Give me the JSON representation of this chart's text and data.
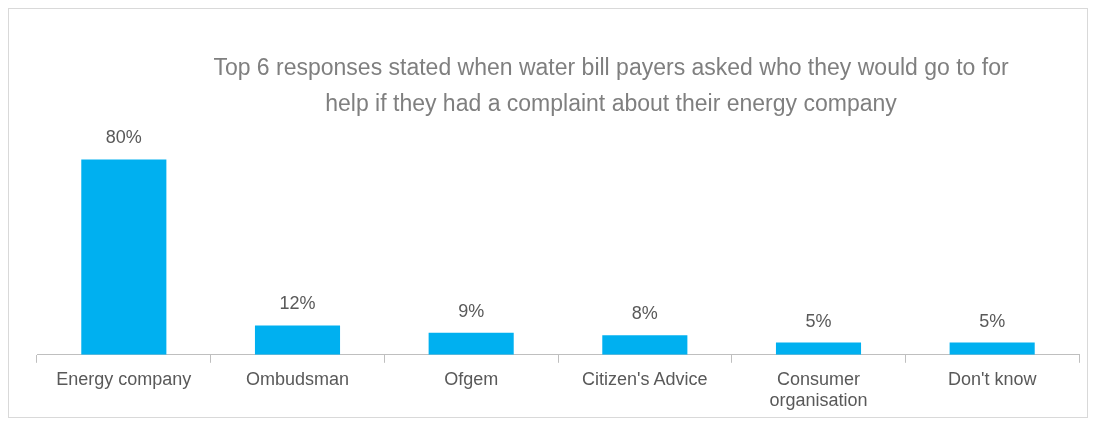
{
  "chart_data": {
    "type": "bar",
    "title": "Top 6 responses stated when water bill payers asked who they would go to for help if they had a complaint about their energy company",
    "categories": [
      "Energy company",
      "Ombudsman",
      "Ofgem",
      "Citizen's Advice",
      "Consumer organisation",
      "Don't know"
    ],
    "values": [
      80,
      12,
      9,
      8,
      5,
      5
    ],
    "value_labels": [
      "80%",
      "12%",
      "9%",
      "8%",
      "5%",
      "5%"
    ],
    "color": "#00b0f0",
    "tick_labels": "x",
    "grid": false,
    "legend": false
  }
}
